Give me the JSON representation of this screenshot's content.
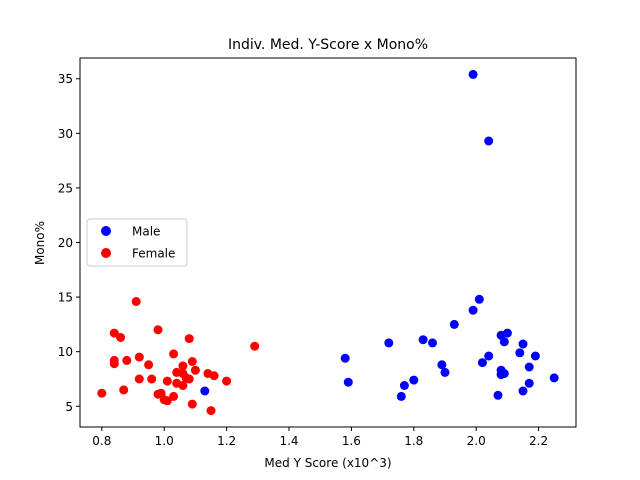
{
  "chart_data": {
    "type": "scatter",
    "title": "Indiv. Med. Y-Score x Mono%",
    "xlabel": "Med Y Score (x10^3)",
    "ylabel": "Mono%",
    "xlim": [
      0.73,
      2.32
    ],
    "ylim": [
      3.1,
      36.9
    ],
    "xticks": [
      0.8,
      1.0,
      1.2,
      1.4,
      1.6,
      1.8,
      2.0,
      2.2
    ],
    "xtick_labels": [
      "0.8",
      "1.0",
      "1.2",
      "1.4",
      "1.6",
      "1.8",
      "2.0",
      "2.2"
    ],
    "yticks": [
      5,
      10,
      15,
      20,
      25,
      30,
      35
    ],
    "ytick_labels": [
      "5",
      "10",
      "15",
      "20",
      "25",
      "30",
      "35"
    ],
    "grid": false,
    "legend_position": "center-left",
    "series": [
      {
        "name": "Male",
        "color": "#0000ff",
        "points": [
          [
            1.99,
            35.4
          ],
          [
            2.04,
            29.3
          ],
          [
            2.01,
            14.8
          ],
          [
            1.99,
            13.8
          ],
          [
            1.93,
            12.5
          ],
          [
            2.1,
            11.7
          ],
          [
            2.08,
            11.5
          ],
          [
            1.83,
            11.1
          ],
          [
            2.09,
            10.9
          ],
          [
            1.72,
            10.8
          ],
          [
            1.86,
            10.8
          ],
          [
            2.15,
            10.7
          ],
          [
            2.14,
            9.9
          ],
          [
            2.04,
            9.6
          ],
          [
            2.19,
            9.6
          ],
          [
            1.58,
            9.4
          ],
          [
            2.02,
            9.0
          ],
          [
            1.89,
            8.8
          ],
          [
            2.17,
            8.6
          ],
          [
            2.08,
            8.3
          ],
          [
            1.9,
            8.1
          ],
          [
            2.09,
            8.0
          ],
          [
            2.08,
            7.9
          ],
          [
            2.25,
            7.6
          ],
          [
            1.8,
            7.4
          ],
          [
            1.59,
            7.2
          ],
          [
            2.17,
            7.1
          ],
          [
            1.77,
            6.9
          ],
          [
            1.13,
            6.4
          ],
          [
            2.15,
            6.4
          ],
          [
            2.07,
            6.0
          ],
          [
            1.76,
            5.9
          ]
        ]
      },
      {
        "name": "Female",
        "color": "#ff0000",
        "points": [
          [
            0.91,
            14.6
          ],
          [
            0.98,
            12.0
          ],
          [
            0.84,
            11.7
          ],
          [
            0.86,
            11.3
          ],
          [
            1.08,
            11.2
          ],
          [
            1.29,
            10.5
          ],
          [
            1.03,
            9.8
          ],
          [
            0.92,
            9.5
          ],
          [
            0.84,
            9.2
          ],
          [
            0.88,
            9.2
          ],
          [
            1.09,
            9.1
          ],
          [
            0.84,
            8.9
          ],
          [
            0.95,
            8.8
          ],
          [
            1.06,
            8.7
          ],
          [
            1.1,
            8.3
          ],
          [
            1.04,
            8.1
          ],
          [
            1.06,
            8.0
          ],
          [
            1.14,
            8.0
          ],
          [
            1.16,
            7.8
          ],
          [
            1.07,
            7.6
          ],
          [
            0.92,
            7.5
          ],
          [
            0.96,
            7.5
          ],
          [
            1.08,
            7.5
          ],
          [
            1.01,
            7.3
          ],
          [
            1.2,
            7.3
          ],
          [
            1.04,
            7.1
          ],
          [
            1.06,
            6.9
          ],
          [
            0.87,
            6.5
          ],
          [
            0.8,
            6.2
          ],
          [
            0.99,
            6.2
          ],
          [
            0.98,
            6.1
          ],
          [
            1.03,
            5.9
          ],
          [
            1.0,
            5.6
          ],
          [
            1.01,
            5.5
          ],
          [
            1.09,
            5.2
          ],
          [
            1.15,
            4.6
          ]
        ]
      }
    ]
  }
}
